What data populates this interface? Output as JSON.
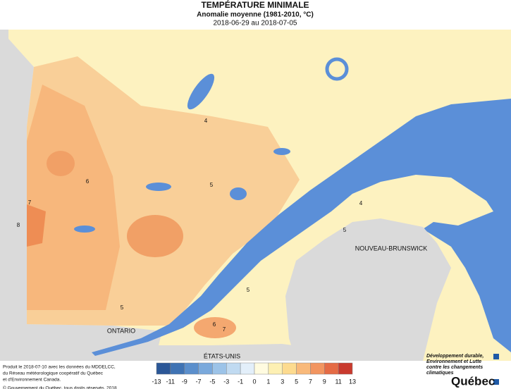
{
  "header": {
    "title": "TEMPÉRATURE MINIMALE",
    "subtitle": "Anomalie moyenne (1981-2010, °C)",
    "period": "2018-06-29 au 2018-07-05"
  },
  "map": {
    "regions": [
      "ONTARIO",
      "ÉTATS-UNIS",
      "NOUVEAU-BRUNSWICK"
    ],
    "contour_labels": [
      4,
      5,
      6,
      4,
      5,
      7,
      8,
      5,
      5,
      6,
      7
    ]
  },
  "legend": {
    "ticks": [
      -13,
      -11,
      -9,
      -7,
      -5,
      -3,
      -1,
      0,
      1,
      3,
      5,
      7,
      9,
      11,
      13
    ],
    "colors": [
      "#2b5797",
      "#3f73b4",
      "#5b8fcc",
      "#7aa9dc",
      "#9cc3e8",
      "#c0daf1",
      "#e3effa",
      "#fffbe0",
      "#fdf0b3",
      "#fddb8f",
      "#f9b97a",
      "#f29560",
      "#e56b45",
      "#c93a2e"
    ]
  },
  "footer": {
    "credits": [
      "Produit le 2018-07-10 avec les données du MDDELCC,",
      "du Réseau météorologique coopératif du Québec",
      "et d'Environnement Canada.",
      "© Gouvernement du Québec, tous droits réservés, 2018"
    ],
    "logo_text": [
      "Développement durable,",
      "Environnement et Lutte",
      "contre les changements",
      "climatiques"
    ],
    "logo_name": "Québec"
  }
}
